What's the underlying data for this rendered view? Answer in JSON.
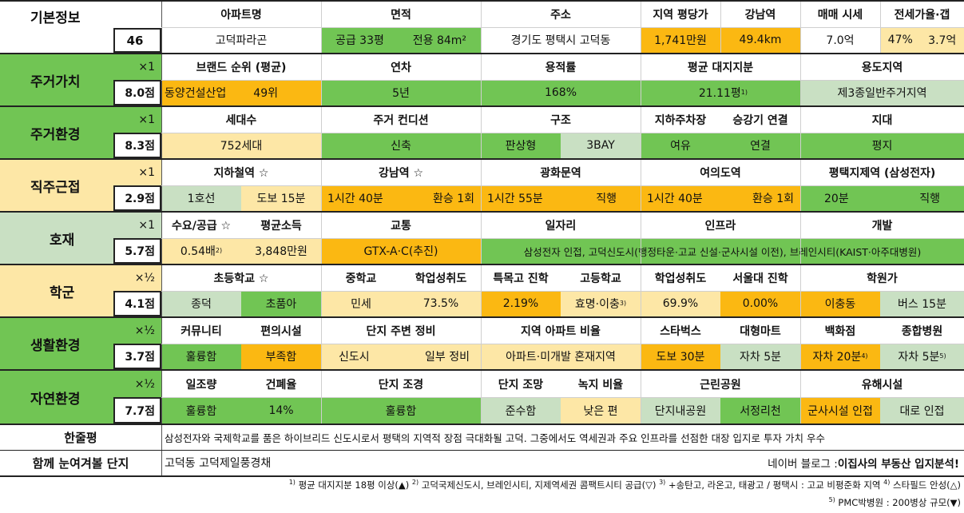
{
  "colors": {
    "green": "#71c554",
    "lightgreen": "#c9e0c3",
    "orange": "#fbb812",
    "yellow": "#fde7a6",
    "white": "#ffffff",
    "cat_green": "#71c554",
    "cat_yellow": "#fde7a6",
    "cat_lightgreen": "#c9e0c3"
  },
  "basic": {
    "title": "기본정보",
    "number": "46",
    "headers": [
      "아파트명",
      "면적",
      "주소",
      "지역 평당가",
      "강남역",
      "매매 시세",
      "전세가율·갭"
    ],
    "name": "고덕파라곤",
    "area_supply": "공급 33평",
    "area_exclusive": "전용 84m²",
    "address": "경기도 평택시 고덕동",
    "price_per_pyeong": "1,741만원",
    "gangnam_distance": "49.4km",
    "sale_price": "7.0억",
    "jeonse_ratio": "47%",
    "gap": "3.7억"
  },
  "residence_value": {
    "title": "주거가치",
    "multiplier": "×1",
    "score": "8.0점",
    "headers": [
      "브랜드 순위 (평균)",
      "연차",
      "용적률",
      "평균 대지지분",
      "용도지역"
    ],
    "builder": "동양건설산업",
    "brand_rank": "49위",
    "age": "5년",
    "far": "168%",
    "land_share": "21.11평",
    "land_share_note": "1)",
    "zoning": "제3종일반주거지역"
  },
  "residence_env": {
    "title": "주거환경",
    "multiplier": "×1",
    "score": "8.3점",
    "headers": [
      "세대수",
      "주거 컨디션",
      "구조",
      "지하주차장",
      "승강기 연결",
      "지대"
    ],
    "households": "752세대",
    "condition": "신축",
    "structure_type": "판상형",
    "bay": "3BAY",
    "parking": "여유",
    "elevator": "연결",
    "terrain": "평지"
  },
  "commute": {
    "title": "직주근접",
    "multiplier": "×1",
    "score": "2.9점",
    "headers": [
      "지하철역 ☆",
      "강남역 ☆",
      "광화문역",
      "여의도역",
      "평택지제역 (삼성전자)"
    ],
    "subway_line": "1호선",
    "subway_walk": "도보 15분",
    "gangnam_time": "1시간 40분",
    "gangnam_transfer": "환승 1회",
    "gwanghwamun_time": "1시간 55분",
    "gwanghwamun_transfer": "직행",
    "yeouido_time": "1시간 40분",
    "yeouido_transfer": "환승 1회",
    "jije_time": "20분",
    "jije_transfer": "직행"
  },
  "development": {
    "title": "호재",
    "multiplier": "×1",
    "score": "5.7점",
    "headers": [
      "수요/공급 ☆",
      "평균소득",
      "교통",
      "일자리",
      "인프라",
      "개발"
    ],
    "supply_ratio": "0.54배",
    "supply_note": "2)",
    "income": "3,848만원",
    "transport": "GTX-A·C(추진)",
    "jobs_infra_dev": "삼성전자 인접, 고덕신도시(행정타운·고교 신설·군사시설 이전), 브레인시티(KAIST·아주대병원)"
  },
  "school": {
    "title": "학군",
    "multiplier": "×½",
    "score": "4.1점",
    "headers": [
      "초등학교 ☆",
      "중학교",
      "학업성취도",
      "특목고 진학",
      "고등학교",
      "학업성취도",
      "서울대 진학",
      "학원가"
    ],
    "elem_1": "종덕",
    "elem_2": "초품아",
    "middle": "민세",
    "middle_score": "73.5%",
    "special_high": "2.19%",
    "high": "효명·이충",
    "high_note": "3)",
    "high_score": "69.9%",
    "snu": "0.00%",
    "academy_area": "이충동",
    "academy_bus": "버스 15분"
  },
  "living_env": {
    "title": "생활환경",
    "multiplier": "×½",
    "score": "3.7점",
    "headers": [
      "커뮤니티",
      "편의시설",
      "단지 주변 정비",
      "지역 아파트 비율",
      "스타벅스",
      "대형마트",
      "백화점",
      "종합병원"
    ],
    "community": "훌륭함",
    "convenience": "부족함",
    "surroundings_1": "신도시",
    "surroundings_2": "일부 정비",
    "apt_ratio": "아파트·미개발 혼재지역",
    "starbucks": "도보 30분",
    "mart": "자차 5분",
    "dept_store": "자차 20분",
    "dept_note": "4)",
    "hospital": "자차 5분",
    "hospital_note": "5)"
  },
  "nature_env": {
    "title": "자연환경",
    "multiplier": "×½",
    "score": "7.7점",
    "headers": [
      "일조량",
      "건폐율",
      "단지 조경",
      "단지 조망",
      "녹지 비율",
      "근린공원",
      "유해시설"
    ],
    "sunlight": "훌륭함",
    "bcr": "14%",
    "landscape": "훌륭함",
    "view": "준수함",
    "green_ratio": "낮은 편",
    "park_1": "단지내공원",
    "park_2": "서정리천",
    "hazard_1": "군사시설 인접",
    "hazard_2": "대로 인접"
  },
  "summary": {
    "title": "한줄평",
    "text": "삼성전자와 국제학교를 품은 하이브리드 신도시로서 평택의 지역적 장점 극대화될 고덕. 그중에서도 역세권과 주요 인프라를 선점한 대장 입지로 투자 가치 우수"
  },
  "compare": {
    "title": "함께 눈여겨볼 단지",
    "text": "고덕동 고덕제일풍경채",
    "blog_prefix": "네이버 블로그 : ",
    "blog_name": "이집사의 부동산 입지분석!"
  },
  "footnotes": {
    "n1_mark": "1)",
    "n1": " 평균 대지지분 18평 이상(▲) ",
    "n2_mark": "2)",
    "n2": " 고덕국제신도시, 브레인시티, 지제역세권 콤팩트시티 공급(▽) ",
    "n3_mark": "3)",
    "n3": " +송탄고, 라온고, 태광고 / 평택시 : 고교 비평준화 지역 ",
    "n4_mark": "4)",
    "n4": " 스타필드 안성(△)",
    "n5_mark": "5)",
    "n5": " PMC박병원 : 200병상 규모(▼)"
  }
}
